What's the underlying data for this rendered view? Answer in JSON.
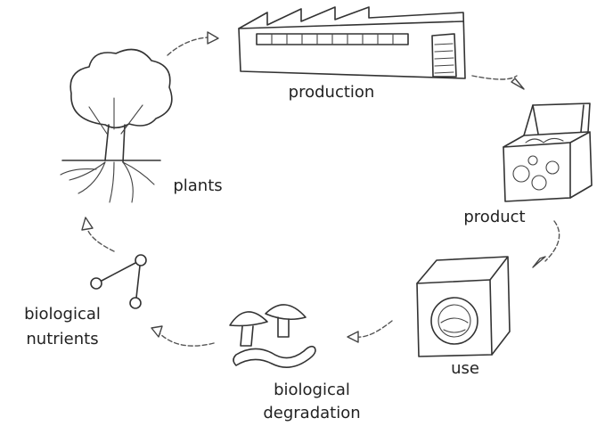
{
  "nodes": [
    {
      "label": [
        "production"
      ]
    },
    {
      "label": [
        "product"
      ]
    },
    {
      "label": [
        "use"
      ]
    },
    {
      "label": [
        "biological",
        "degradation"
      ]
    },
    {
      "label": [
        "biological",
        "nutrients"
      ]
    },
    {
      "label": [
        "plants"
      ]
    }
  ]
}
